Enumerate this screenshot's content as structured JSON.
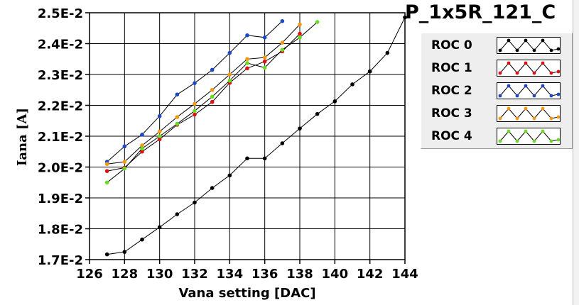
{
  "chart_data": {
    "type": "line",
    "title": "P_1x5R_121_C",
    "xlabel": "Vana setting [DAC]",
    "ylabel": "Iana [A]",
    "xlim": [
      126,
      144
    ],
    "ylim": [
      0.017,
      0.025
    ],
    "x_ticks": [
      126,
      128,
      130,
      132,
      134,
      136,
      138,
      140,
      142,
      144
    ],
    "y_ticks": [
      0.017,
      0.018,
      0.019,
      0.02,
      0.021,
      0.022,
      0.023,
      0.024,
      0.025
    ],
    "x_tick_labels": [
      "126",
      "128",
      "130",
      "132",
      "134",
      "136",
      "138",
      "140",
      "142",
      "144"
    ],
    "y_tick_labels": [
      "1.7E-2",
      "1.8E-2",
      "1.9E-2",
      "2.0E-2",
      "2.1E-2",
      "2.2E-2",
      "2.3E-2",
      "2.4E-2",
      "2.5E-2"
    ],
    "grid": true,
    "legend_position": "right",
    "series": [
      {
        "name": "ROC 0",
        "color": "#000000",
        "x": [
          127,
          128,
          129,
          130,
          131,
          132,
          133,
          134,
          135,
          136,
          137,
          138,
          139,
          140,
          141,
          142,
          143,
          144
        ],
        "y": [
          0.01717,
          0.01725,
          0.01765,
          0.01805,
          0.01847,
          0.01885,
          0.01932,
          0.01973,
          0.02028,
          0.02028,
          0.02077,
          0.02125,
          0.02172,
          0.02213,
          0.02268,
          0.0231,
          0.0237,
          0.02485
        ]
      },
      {
        "name": "ROC 1",
        "color": "#e01010",
        "x": [
          127,
          128,
          129,
          130,
          131,
          132,
          133,
          134,
          135,
          136,
          137,
          138
        ],
        "y": [
          0.01987,
          0.01998,
          0.0205,
          0.0209,
          0.02137,
          0.0217,
          0.02211,
          0.02273,
          0.0232,
          0.02342,
          0.02375,
          0.02432
        ]
      },
      {
        "name": "ROC 2",
        "color": "#1a48c8",
        "x": [
          127,
          128,
          129,
          130,
          131,
          132,
          133,
          134,
          135,
          136,
          137
        ],
        "y": [
          0.02017,
          0.02067,
          0.02105,
          0.02165,
          0.02235,
          0.02272,
          0.02315,
          0.0237,
          0.02427,
          0.0242,
          0.02473
        ]
      },
      {
        "name": "ROC 3",
        "color": "#f59a10",
        "x": [
          127,
          128,
          129,
          130,
          131,
          132,
          133,
          134,
          135,
          136,
          137,
          138
        ],
        "y": [
          0.0201,
          0.02017,
          0.0207,
          0.02115,
          0.02162,
          0.02205,
          0.0225,
          0.023,
          0.0235,
          0.02355,
          0.02403,
          0.02462
        ]
      },
      {
        "name": "ROC 4",
        "color": "#66dd22",
        "x": [
          127,
          128,
          129,
          130,
          131,
          132,
          133,
          134,
          135,
          136,
          137,
          138,
          139
        ],
        "y": [
          0.0195,
          0.01995,
          0.0206,
          0.021,
          0.0214,
          0.02182,
          0.02228,
          0.0228,
          0.02337,
          0.02322,
          0.0238,
          0.0242,
          0.0247
        ]
      }
    ]
  }
}
